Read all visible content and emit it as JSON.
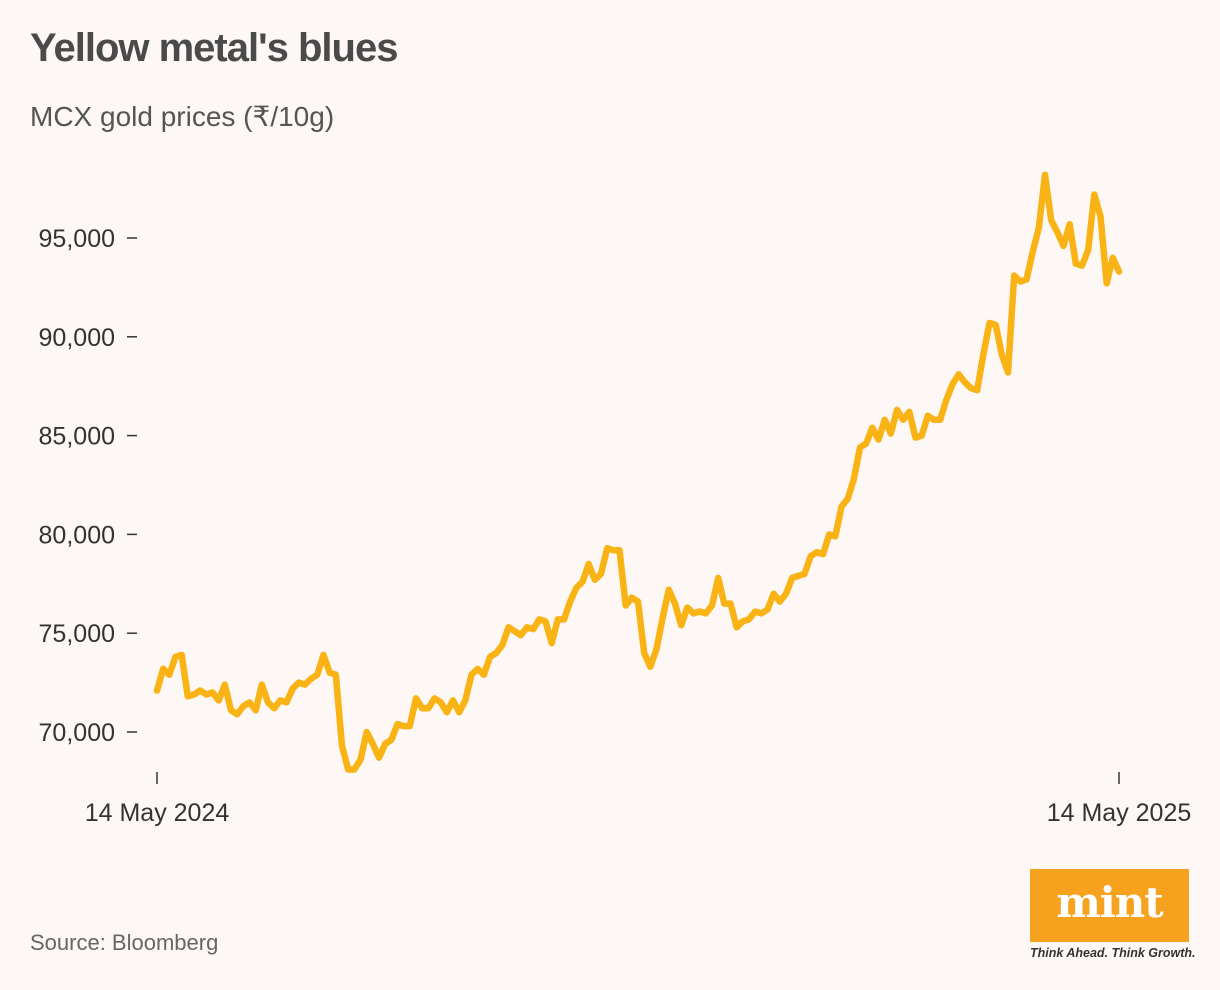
{
  "chart_data": {
    "type": "line",
    "title": "Yellow metal's blues",
    "subtitle": "MCX gold prices (₹/10g)",
    "source": "Source: Bloomberg",
    "xlabel": "",
    "ylabel": "",
    "x_tick_labels": [
      "14 May 2024",
      "14 May 2025"
    ],
    "y_ticks": [
      70000,
      75000,
      80000,
      85000,
      90000,
      95000
    ],
    "y_tick_labels": [
      "70,000",
      "75,000",
      "80,000",
      "85,000",
      "90,000",
      "95,000"
    ],
    "ylim": [
      67500,
      98500
    ],
    "grid": false,
    "color": "#f9b314",
    "series": [
      {
        "values": [
          72100,
          73200,
          72900,
          73800,
          73900,
          71800,
          71900,
          72100,
          71900,
          72000,
          71600,
          72400,
          71100,
          70900,
          71300,
          71500,
          71100,
          72400,
          71500,
          71200,
          71600,
          71500,
          72200,
          72500,
          72400,
          72700,
          72900,
          73900,
          73000,
          72900,
          69300,
          68100,
          68100,
          68600,
          70000,
          69400,
          68700,
          69400,
          69600,
          70400,
          70300,
          70300,
          71700,
          71200,
          71200,
          71700,
          71500,
          71000,
          71600,
          71000,
          71600,
          72900,
          73200,
          72900,
          73800,
          74000,
          74400,
          75300,
          75100,
          74900,
          75300,
          75200,
          75700,
          75600,
          74500,
          75700,
          75700,
          76600,
          77300,
          77600,
          78500,
          77700,
          78000,
          79300,
          79200,
          79200,
          76400,
          76800,
          76600,
          74000,
          73300,
          74200,
          75800,
          77200,
          76500,
          75400,
          76300,
          76000,
          76100,
          76000,
          76400,
          77800,
          76500,
          76500,
          75300,
          75600,
          75700,
          76100,
          76000,
          76200,
          77000,
          76600,
          77000,
          77800,
          77900,
          78000,
          78900,
          79100,
          79000,
          80000,
          79900,
          81400,
          81800,
          82800,
          84400,
          84600,
          85400,
          84800,
          85800,
          85100,
          86300,
          85800,
          86200,
          84900,
          85000,
          86000,
          85800,
          85800,
          86800,
          87600,
          88100,
          87700,
          87400,
          87300,
          89100,
          90700,
          90600,
          89100,
          88200,
          93100,
          92800,
          92900,
          94300,
          95500,
          98200,
          95900,
          95300,
          94600,
          95700,
          93700,
          93600,
          94400,
          97200,
          96100,
          92700,
          94000,
          93300
        ]
      }
    ]
  },
  "logo": {
    "text": "mint",
    "tagline": "Think Ahead. Think Growth.",
    "color": "#f6a21e"
  }
}
